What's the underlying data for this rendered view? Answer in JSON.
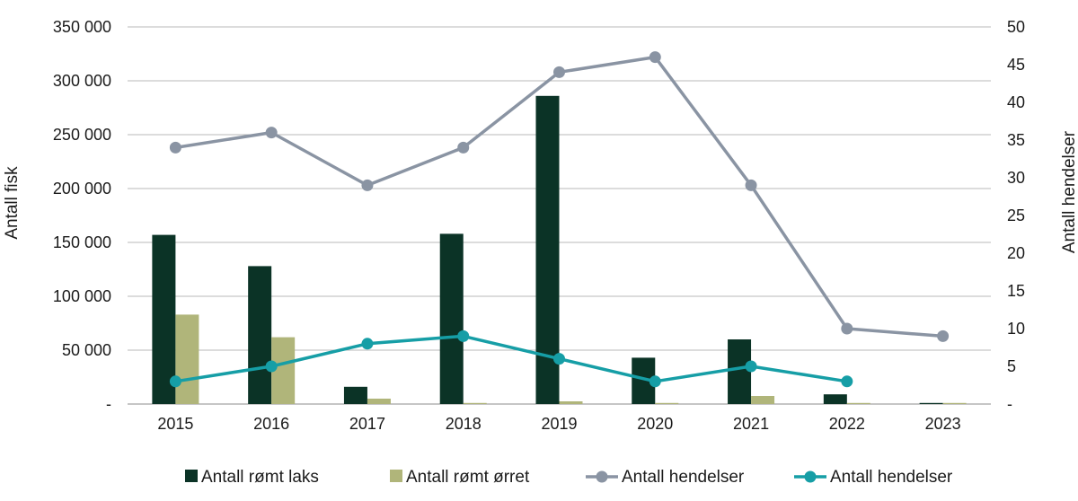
{
  "chart_data": {
    "type": "bar",
    "categories": [
      "2015",
      "2016",
      "2017",
      "2018",
      "2019",
      "2020",
      "2021",
      "2022",
      "2023"
    ],
    "ylabel": "Antall fisk",
    "y2label": "Antall hendelser",
    "ylim": [
      0,
      350000
    ],
    "y2lim": [
      0,
      50
    ],
    "y_ticks": [
      "-",
      "50 000",
      "100 000",
      "150 000",
      "200 000",
      "250 000",
      "300 000",
      "350 000"
    ],
    "y2_ticks": [
      "-",
      "5",
      "10",
      "15",
      "20",
      "25",
      "30",
      "35",
      "40",
      "45",
      "50"
    ],
    "grid": true,
    "legend_position": "bottom",
    "bar_series": [
      {
        "name": "Antall rømt laks",
        "color": "#0b3326",
        "values": [
          157000,
          128000,
          16000,
          158000,
          286000,
          43000,
          60000,
          9000,
          1000
        ]
      },
      {
        "name": "Antall rømt ørret",
        "color": "#b0b57a",
        "values": [
          83000,
          62000,
          5000,
          1000,
          2500,
          1000,
          7500,
          1000,
          1000
        ]
      }
    ],
    "line_series": [
      {
        "name": "Antall hendelser",
        "color": "#8a94a3",
        "values": [
          34,
          36,
          29,
          34,
          44,
          46,
          29,
          10,
          9
        ]
      },
      {
        "name": "Antall hendelser",
        "color": "#169ea6",
        "values": [
          3,
          5,
          8,
          9,
          6,
          3,
          5,
          3,
          null
        ]
      }
    ]
  }
}
